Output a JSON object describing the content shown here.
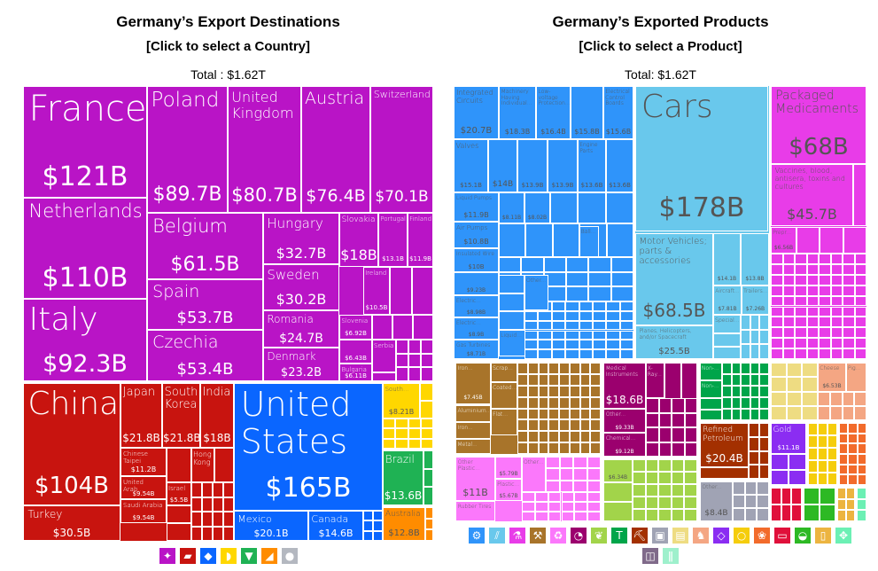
{
  "left": {
    "title": "Germany’s Export Destinations",
    "subtitle": "[Click to select a Country]",
    "total": "Total : $1.62T",
    "groups": {
      "europe": "#b914c6",
      "asia": "#c8140f",
      "north_america": "#0a66ff",
      "africa": "#ffd700",
      "south_america": "#1fb254",
      "oceania": "#ff8c00",
      "antarctica": "#b4b8c0"
    },
    "tiles": [
      {
        "label": "France",
        "value": "$121B",
        "group": "europe"
      },
      {
        "label": "Netherlands",
        "value": "$110B",
        "group": "europe"
      },
      {
        "label": "Italy",
        "value": "$92.3B",
        "group": "europe"
      },
      {
        "label": "Poland",
        "value": "$89.7B",
        "group": "europe"
      },
      {
        "label": "United Kingdom",
        "value": "$80.7B",
        "group": "europe"
      },
      {
        "label": "Austria",
        "value": "$76.4B",
        "group": "europe"
      },
      {
        "label": "Switzerland",
        "value": "$70.1B",
        "group": "europe"
      },
      {
        "label": "Belgium",
        "value": "$61.5B",
        "group": "europe"
      },
      {
        "label": "Spain",
        "value": "$53.7B",
        "group": "europe"
      },
      {
        "label": "Czechia",
        "value": "$53.4B",
        "group": "europe"
      },
      {
        "label": "Hungary",
        "value": "$32.7B",
        "group": "europe"
      },
      {
        "label": "Sweden",
        "value": "$30.2B",
        "group": "europe"
      },
      {
        "label": "Romania",
        "value": "$24.7B",
        "group": "europe"
      },
      {
        "label": "Denmark",
        "value": "$23.2B",
        "group": "europe"
      },
      {
        "label": "Slovakia",
        "value": "$18B",
        "group": "europe"
      },
      {
        "label": "Portugal",
        "value": "$13.1B",
        "group": "europe"
      },
      {
        "label": "Finland",
        "value": "$11.9B",
        "group": "europe"
      },
      {
        "label": "Ireland",
        "value": "$10.5B",
        "group": "europe"
      },
      {
        "label": "Slovenia",
        "value": "$6.92B",
        "group": "europe"
      },
      {
        "label": "",
        "value": "$6.43B",
        "group": "europe"
      },
      {
        "label": "Bulgaria",
        "value": "$6.11B",
        "group": "europe"
      },
      {
        "label": "Serbia",
        "value": "",
        "group": "europe"
      },
      {
        "label": "China",
        "value": "$104B",
        "group": "asia"
      },
      {
        "label": "Turkey",
        "value": "$30.5B",
        "group": "asia"
      },
      {
        "label": "Japan",
        "value": "$21.8B",
        "group": "asia"
      },
      {
        "label": "South Korea",
        "value": "$21.8B",
        "group": "asia"
      },
      {
        "label": "India",
        "value": "$18B",
        "group": "asia"
      },
      {
        "label": "Chinese Taipei",
        "value": "$11.2B",
        "group": "asia"
      },
      {
        "label": "United Arab...",
        "value": "$9.54B",
        "group": "asia"
      },
      {
        "label": "Saudi Arabia",
        "value": "$9.54B",
        "group": "asia"
      },
      {
        "label": "Hong Kong",
        "value": "",
        "group": "asia"
      },
      {
        "label": "Israel",
        "value": "$5.5B",
        "group": "asia"
      },
      {
        "label": "United States",
        "value": "$165B",
        "group": "north_america"
      },
      {
        "label": "Mexico",
        "value": "$20.1B",
        "group": "north_america"
      },
      {
        "label": "Canada",
        "value": "$14.6B",
        "group": "north_america"
      },
      {
        "label": "South...",
        "value": "$8.21B",
        "group": "africa"
      },
      {
        "label": "Brazil",
        "value": "$13.6B",
        "group": "south_america"
      },
      {
        "label": "Australia",
        "value": "$12.8B",
        "group": "oceania"
      }
    ],
    "legend": [
      {
        "icon": "europe-icon",
        "group": "europe",
        "glyph": "✦"
      },
      {
        "icon": "asia-icon",
        "group": "asia",
        "glyph": "▰"
      },
      {
        "icon": "north-america-icon",
        "group": "north_america",
        "glyph": "◆"
      },
      {
        "icon": "africa-icon",
        "group": "africa",
        "glyph": "◗"
      },
      {
        "icon": "south-america-icon",
        "group": "south_america",
        "glyph": "▼"
      },
      {
        "icon": "oceania-icon",
        "group": "oceania",
        "glyph": "◢"
      },
      {
        "icon": "antarctica-icon",
        "group": "antarctica",
        "glyph": "●"
      }
    ]
  },
  "right": {
    "title": "Germany’s Exported Products",
    "subtitle": "[Click to select a Product]",
    "total": "Total: $1.62T",
    "groups": {
      "machinery": "#2f94fa",
      "transportation": "#69c8ec",
      "chemicals": "#e83ce8",
      "metals": "#a8742a",
      "plastics": "#fb78fb",
      "instruments": "#9b006e",
      "vegetables": "#a2d44a",
      "textiles": "#00a54a",
      "minerals": "#a33000",
      "miscellaneous": "#a0a3b4",
      "paper": "#eedc82",
      "animal_hides": "#f4a683",
      "precious_metals": "#8b2df2",
      "foodstuffs": "#f5cd0c",
      "animal_products": "#f26b2b",
      "weapons": "#e0103b",
      "footwear": "#2db924",
      "stone": "#ecb440",
      "animal_hides_leather": "#6cf0b4",
      "arts": "#806a8a",
      "mint2": "#9ef0cc"
    },
    "tiles": [
      {
        "label": "Integrated Circuits",
        "value": "$20.7B",
        "group": "machinery"
      },
      {
        "label": "Machinery Having Individual...",
        "value": "$18.3B",
        "group": "machinery"
      },
      {
        "label": "Low-voltage Protection...",
        "value": "$16.4B",
        "group": "machinery"
      },
      {
        "label": "",
        "value": "$15.8B",
        "group": "machinery"
      },
      {
        "label": "Electrical Control Boards",
        "value": "$15.6B",
        "group": "machinery"
      },
      {
        "label": "Valves",
        "value": "$15.1B",
        "group": "machinery"
      },
      {
        "label": "",
        "value": "$14B",
        "group": "machinery"
      },
      {
        "label": "",
        "value": "$13.9B",
        "group": "machinery"
      },
      {
        "label": "",
        "value": "$13.9B",
        "group": "machinery"
      },
      {
        "label": "Engine Parts",
        "value": "$13.6B",
        "group": "machinery"
      },
      {
        "label": "",
        "value": "$13.6B",
        "group": "machinery"
      },
      {
        "label": "Liquid Pumps",
        "value": "$11.9B",
        "group": "machinery"
      },
      {
        "label": "Air Pumps",
        "value": "$10.8B",
        "group": "machinery"
      },
      {
        "label": "Insulated Wire",
        "value": "$10B",
        "group": "machinery"
      },
      {
        "label": "",
        "value": "$9.23B",
        "group": "machinery"
      },
      {
        "label": "Electric...",
        "value": "$8.98B",
        "group": "machinery"
      },
      {
        "label": "Electric...",
        "value": "$8.9B",
        "group": "machinery"
      },
      {
        "label": "Gas Turbines",
        "value": "$8.71B",
        "group": "machinery"
      },
      {
        "label": "",
        "value": "$8.11B",
        "group": "machinery"
      },
      {
        "label": "",
        "value": "$8.02B",
        "group": "machinery"
      },
      {
        "label": "Ball...",
        "value": "",
        "group": "machinery"
      },
      {
        "label": "Other...",
        "value": "",
        "group": "machinery"
      },
      {
        "label": "Liquid...",
        "value": "",
        "group": "machinery"
      },
      {
        "label": "Cars",
        "value": "$178B",
        "group": "transportation"
      },
      {
        "label": "Motor Vehicles; parts & accessories",
        "value": "$68.5B",
        "group": "transportation"
      },
      {
        "label": "Planes, Helicopters, and/or Spacecraft",
        "value": "$25.5B",
        "group": "transportation"
      },
      {
        "label": "",
        "value": "$14.1B",
        "group": "transportation"
      },
      {
        "label": "",
        "value": "$13.8B",
        "group": "transportation"
      },
      {
        "label": "Aircraft...",
        "value": "$7.81B",
        "group": "transportation"
      },
      {
        "label": "Trailers...",
        "value": "$7.26B",
        "group": "transportation"
      },
      {
        "label": "Special...",
        "value": "",
        "group": "transportation"
      },
      {
        "label": "Packaged Medicaments",
        "value": "$68B",
        "group": "chemicals"
      },
      {
        "label": "Vaccines, blood, antisera, toxins and cultures",
        "value": "$45.7B",
        "group": "chemicals"
      },
      {
        "label": "Prepr...",
        "value": "$6.56B",
        "group": "chemicals"
      },
      {
        "label": "Iron...",
        "value": "$7.45B",
        "group": "metals"
      },
      {
        "label": "Aluminium...",
        "value": "",
        "group": "metals"
      },
      {
        "label": "Iron...",
        "value": "",
        "group": "metals"
      },
      {
        "label": "Metal...",
        "value": "",
        "group": "metals"
      },
      {
        "label": "Scrap...",
        "value": "",
        "group": "metals"
      },
      {
        "label": "Coated...",
        "value": "",
        "group": "metals"
      },
      {
        "label": "Flat...",
        "value": "",
        "group": "metals"
      },
      {
        "label": "Other Plastic...",
        "value": "$11B",
        "group": "plastics"
      },
      {
        "label": "Rubber Tires",
        "value": "",
        "group": "plastics"
      },
      {
        "label": "",
        "value": "$5.79B",
        "group": "plastics"
      },
      {
        "label": "Plastic...",
        "value": "$5.67B",
        "group": "plastics"
      },
      {
        "label": "Other...",
        "value": "",
        "group": "plastics"
      },
      {
        "label": "Medical Instruments",
        "value": "$18.6B",
        "group": "instruments"
      },
      {
        "label": "X-Ray...",
        "value": "",
        "group": "instruments"
      },
      {
        "label": "Other...",
        "value": "$9.33B",
        "group": "instruments"
      },
      {
        "label": "Chemical...",
        "value": "$9.12B",
        "group": "instruments"
      },
      {
        "label": "",
        "value": "$6.34B",
        "group": "vegetables"
      },
      {
        "label": "Non-...",
        "value": "",
        "group": "textiles"
      },
      {
        "label": "Non-...",
        "value": "",
        "group": "textiles"
      },
      {
        "label": "Refined Petroleum",
        "value": "$20.4B",
        "group": "minerals"
      },
      {
        "label": "Other...",
        "value": "$8.4B",
        "group": "miscellaneous"
      },
      {
        "label": "Cheese",
        "value": "$6.53B",
        "group": "animal_hides"
      },
      {
        "label": "Pig...",
        "value": "",
        "group": "animal_hides"
      },
      {
        "label": "Gold",
        "value": "$11.1B",
        "group": "precious_metals"
      }
    ],
    "legend": [
      {
        "icon": "machinery-gear-icon",
        "group": "machinery",
        "glyph": "⚙"
      },
      {
        "icon": "transportation-road-icon",
        "group": "transportation",
        "glyph": "⫽"
      },
      {
        "icon": "chemicals-flask-icon",
        "group": "chemicals",
        "glyph": "⚗"
      },
      {
        "icon": "metals-anvil-icon",
        "group": "metals",
        "glyph": "⚒"
      },
      {
        "icon": "plastics-recycle-icon",
        "group": "plastics",
        "glyph": "♻"
      },
      {
        "icon": "instruments-gauge-icon",
        "group": "instruments",
        "glyph": "◔"
      },
      {
        "icon": "vegetables-wheat-icon",
        "group": "vegetables",
        "glyph": "❦"
      },
      {
        "icon": "textiles-shirt-icon",
        "group": "textiles",
        "glyph": "T"
      },
      {
        "icon": "minerals-pickaxe-icon",
        "group": "minerals",
        "glyph": "⛏"
      },
      {
        "icon": "miscellaneous-box-icon",
        "group": "miscellaneous",
        "glyph": "▣"
      },
      {
        "icon": "paper-scroll-icon",
        "group": "paper",
        "glyph": "▤"
      },
      {
        "icon": "animal-hides-animal-icon",
        "group": "animal_hides",
        "glyph": "♞"
      },
      {
        "icon": "precious-metals-diamond-icon",
        "group": "precious_metals",
        "glyph": "◇"
      },
      {
        "icon": "foodstuffs-fruit-icon",
        "group": "foodstuffs",
        "glyph": "○"
      },
      {
        "icon": "animal-products-icon",
        "group": "animal_products",
        "glyph": "❀"
      },
      {
        "icon": "weapons-icon",
        "group": "weapons",
        "glyph": "▭"
      },
      {
        "icon": "footwear-shoe-icon",
        "group": "footwear",
        "glyph": "◒"
      },
      {
        "icon": "stone-glass-icon",
        "group": "stone",
        "glyph": "▯"
      },
      {
        "icon": "leather-hide-icon",
        "group": "animal_hides_leather",
        "glyph": "✥"
      },
      {
        "icon": "arts-easel-icon",
        "group": "arts",
        "glyph": "◫"
      },
      {
        "icon": "bottles-icon",
        "group": "mint2",
        "glyph": "ǁ"
      }
    ]
  }
}
